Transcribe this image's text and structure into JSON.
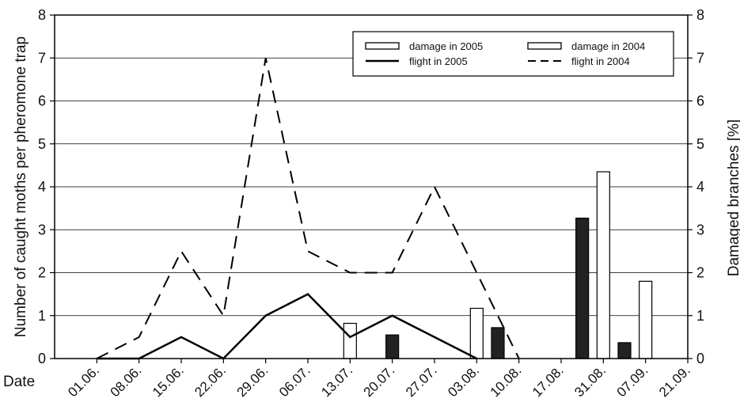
{
  "chart_data": {
    "type": "bar",
    "categories": [
      "01.06.",
      "08.06.",
      "15.06.",
      "22.06.",
      "29.06.",
      "06.07.",
      "13.07.",
      "20.07.",
      "27.07.",
      "03.08.",
      "10.08.",
      "17.08.",
      "31.08.",
      "07.09.",
      "21.09."
    ],
    "xlabel": "Date",
    "ylabel": "Number of caught moths per pheromone trap",
    "y2label": "Damaged branches  [%]",
    "ylim": [
      0,
      8
    ],
    "y2lim": [
      0,
      8
    ],
    "yticks": [
      0,
      1,
      2,
      3,
      4,
      5,
      6,
      7,
      8
    ],
    "grid": true,
    "legend_position": "top-right",
    "bar_series": [
      {
        "name": "damage in 2005",
        "axis": "right",
        "color": "#ffffff",
        "points": [
          {
            "x": 7.0,
            "value": 0.82
          },
          {
            "x": 10.0,
            "value": 1.17
          },
          {
            "x": 13.0,
            "value": 4.35
          },
          {
            "x": 14.0,
            "value": 1.8
          }
        ]
      },
      {
        "name": "damage in 2004",
        "axis": "right",
        "color": "#222222",
        "points": [
          {
            "x": 8.0,
            "value": 0.55
          },
          {
            "x": 10.5,
            "value": 0.72
          },
          {
            "x": 12.5,
            "value": 3.27
          },
          {
            "x": 13.5,
            "value": 0.37
          }
        ]
      }
    ],
    "line_series": [
      {
        "name": "flight in 2005",
        "axis": "left",
        "style": "solid",
        "color": "#000000",
        "points": [
          {
            "x": 1.0,
            "y": 0
          },
          {
            "x": 2.0,
            "y": 0
          },
          {
            "x": 3.0,
            "y": 0.5
          },
          {
            "x": 4.0,
            "y": 0
          },
          {
            "x": 5.0,
            "y": 1.0
          },
          {
            "x": 6.0,
            "y": 1.5
          },
          {
            "x": 7.0,
            "y": 0.5
          },
          {
            "x": 8.0,
            "y": 1.0
          },
          {
            "x": 10.0,
            "y": 0
          }
        ]
      },
      {
        "name": "flight in 2004",
        "axis": "left",
        "style": "dashed",
        "color": "#000000",
        "points": [
          {
            "x": 1.0,
            "y": 0
          },
          {
            "x": 2.0,
            "y": 0.5
          },
          {
            "x": 3.0,
            "y": 2.5
          },
          {
            "x": 4.0,
            "y": 1.0
          },
          {
            "x": 5.0,
            "y": 7.0
          },
          {
            "x": 6.0,
            "y": 2.5
          },
          {
            "x": 7.0,
            "y": 2.0
          },
          {
            "x": 8.0,
            "y": 2.0
          },
          {
            "x": 9.0,
            "y": 4.0
          },
          {
            "x": 10.0,
            "y": 2.0
          },
          {
            "x": 11.0,
            "y": 0
          }
        ]
      }
    ]
  }
}
